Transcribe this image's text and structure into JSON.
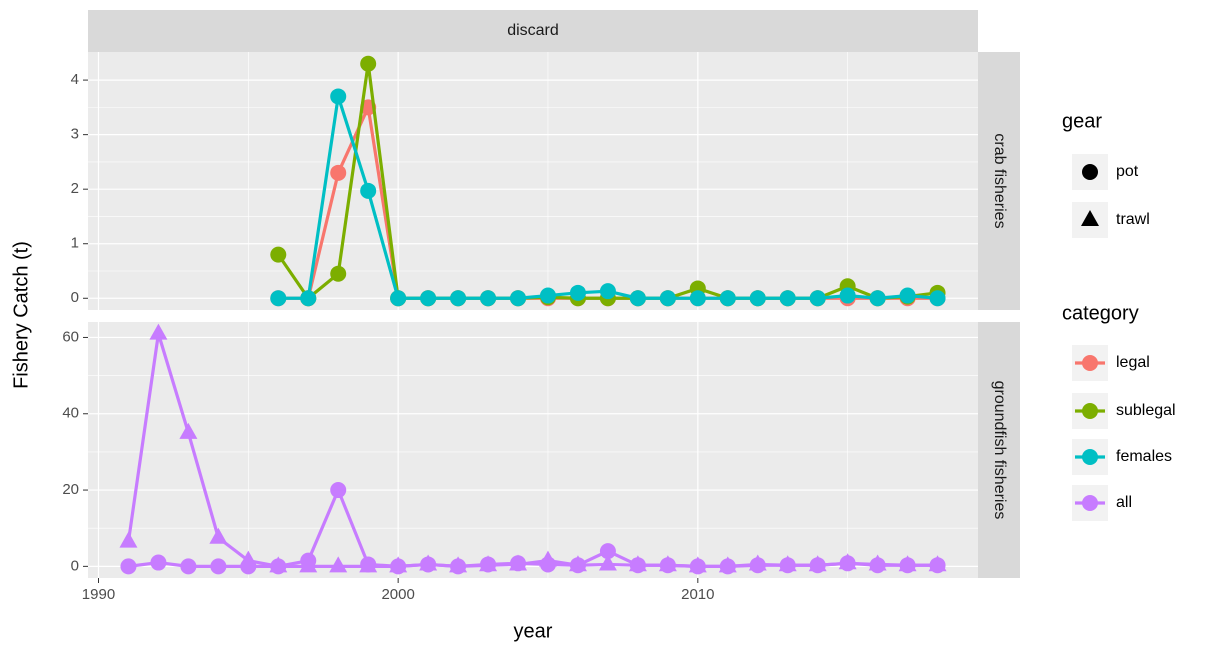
{
  "chart_data": {
    "type": "line",
    "strip": "discard",
    "x_label": "year",
    "y_label": "Fishery Catch (t)",
    "xlim": [
      1989.65,
      2019.35
    ],
    "xticks": [
      1990,
      2000,
      2010
    ],
    "grid": true,
    "legend": {
      "gear_title": "gear",
      "category_title": "category"
    },
    "facets": [
      {
        "label": "crab fisheries",
        "ylim": [
          -0.215,
          4.515
        ],
        "yticks": [
          0,
          1,
          2,
          3,
          4
        ],
        "series": [
          {
            "name": "legal",
            "gear": "pot",
            "color": "#F8766D",
            "x": [
              1996,
              1997,
              1998,
              1999,
              2000,
              2001,
              2002,
              2003,
              2004,
              2005,
              2006,
              2007,
              2008,
              2009,
              2010,
              2011,
              2012,
              2013,
              2014,
              2015,
              2016,
              2017,
              2018
            ],
            "values": [
              0,
              0,
              2.3,
              3.5,
              0,
              0,
              0,
              0,
              0,
              0,
              0,
              0,
              0,
              0,
              0,
              0,
              0,
              0,
              0,
              0,
              0,
              0,
              0
            ]
          },
          {
            "name": "sublegal",
            "gear": "pot",
            "color": "#7CAE00",
            "x": [
              1996,
              1997,
              1998,
              1999,
              2000,
              2001,
              2002,
              2003,
              2004,
              2005,
              2006,
              2007,
              2008,
              2009,
              2010,
              2011,
              2012,
              2013,
              2014,
              2015,
              2016,
              2017,
              2018
            ],
            "values": [
              0.8,
              0,
              0.45,
              4.3,
              0,
              0,
              0,
              0,
              0,
              0.02,
              0,
              0,
              0,
              0,
              0.18,
              0,
              0,
              0,
              0,
              0.22,
              0,
              0.03,
              0.1
            ]
          },
          {
            "name": "females",
            "gear": "pot",
            "color": "#00BFC4",
            "x": [
              1996,
              1997,
              1998,
              1999,
              2000,
              2001,
              2002,
              2003,
              2004,
              2005,
              2006,
              2007,
              2008,
              2009,
              2010,
              2011,
              2012,
              2013,
              2014,
              2015,
              2016,
              2017,
              2018
            ],
            "values": [
              0,
              0,
              3.7,
              1.97,
              0,
              0,
              0,
              0,
              0,
              0.05,
              0.1,
              0.13,
              0,
              0,
              0,
              0,
              0,
              0,
              0,
              0.05,
              0,
              0.05,
              0
            ]
          }
        ]
      },
      {
        "label": "groundfish fisheries",
        "ylim": [
          -3.05,
          64.05
        ],
        "yticks": [
          0,
          20,
          40,
          60
        ],
        "series": [
          {
            "name": "all",
            "gear": "pot",
            "color": "#C77CFF",
            "x": [
              1991,
              1992,
              1993,
              1994,
              1995,
              1996,
              1997,
              1998,
              1999,
              2000,
              2001,
              2002,
              2003,
              2004,
              2005,
              2006,
              2007,
              2008,
              2009,
              2010,
              2011,
              2012,
              2013,
              2014,
              2015,
              2016,
              2017,
              2018
            ],
            "values": [
              0,
              1,
              0,
              0,
              0,
              0,
              1.5,
              20,
              0.5,
              0,
              0.5,
              0,
              0.5,
              0.8,
              0.5,
              0.3,
              4,
              0.3,
              0.3,
              0,
              0,
              0.3,
              0.3,
              0.3,
              0.8,
              0.3,
              0.3,
              0.3
            ]
          },
          {
            "name": "all",
            "gear": "trawl",
            "color": "#C77CFF",
            "x": [
              1991,
              1992,
              1993,
              1994,
              1995,
              1996,
              1997,
              1998,
              1999,
              2000,
              2001,
              2002,
              2003,
              2004,
              2005,
              2006,
              2007,
              2008,
              2009,
              2010,
              2011,
              2012,
              2013,
              2014,
              2015,
              2016,
              2017,
              2018
            ],
            "values": [
              6.5,
              61,
              35,
              7.5,
              1.5,
              0,
              0,
              0,
              0,
              0,
              0.5,
              0,
              0.3,
              0.5,
              1.5,
              0.3,
              0.5,
              0.3,
              0.3,
              0,
              0,
              0.5,
              0.3,
              0.3,
              0.8,
              0.5,
              0.3,
              0.3
            ]
          }
        ]
      }
    ]
  }
}
